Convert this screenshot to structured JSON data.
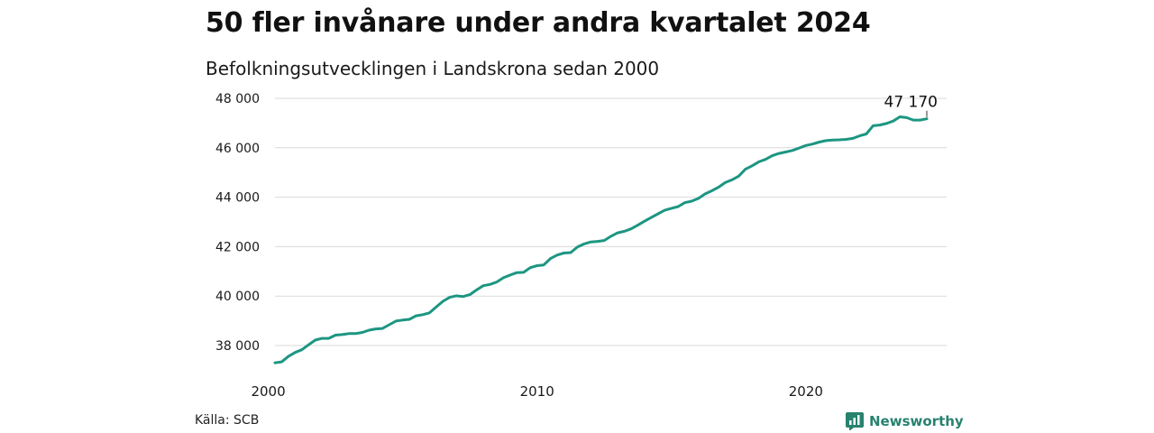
{
  "title": "50 fler invånare under andra kvartalet 2024",
  "subtitle": "Befolkningsutvecklingen i Landskrona sedan 2000",
  "source": "Källa: SCB",
  "brand": "Newsworthy",
  "colors": {
    "line": "#1c9682",
    "brand": "#27826e",
    "grid": "#d9d9d9"
  },
  "chart_data": {
    "type": "line",
    "title": "50 fler invånare under andra kvartalet 2024",
    "subtitle": "Befolkningsutvecklingen i Landskrona sedan 2000",
    "xlabel": "",
    "ylabel": "",
    "xlim": [
      2000,
      2025.3
    ],
    "ylim": [
      37000,
      48300
    ],
    "yticks": [
      38000,
      40000,
      42000,
      44000,
      46000,
      48000
    ],
    "ytick_labels": [
      "38 000",
      "40 000",
      "42 000",
      "44 000",
      "46 000",
      "48 000"
    ],
    "xticks": [
      2000,
      2010,
      2020
    ],
    "xtick_labels": [
      "2000",
      "2010",
      "2020"
    ],
    "grid": true,
    "end_label": "47 170",
    "series": [
      {
        "x": [
          2000.25,
          2000.5,
          2000.75,
          2001.0,
          2001.25,
          2001.5,
          2001.75,
          2002.0,
          2002.25,
          2002.5,
          2002.75,
          2003.0,
          2003.25,
          2003.5,
          2003.75,
          2004.0,
          2004.25,
          2004.5,
          2004.75,
          2005.0,
          2005.25,
          2005.5,
          2005.75,
          2006.0,
          2006.25,
          2006.5,
          2006.75,
          2007.0,
          2007.25,
          2007.5,
          2007.75,
          2008.0,
          2008.25,
          2008.5,
          2008.75,
          2009.0,
          2009.25,
          2009.5,
          2009.75,
          2010.0,
          2010.25,
          2010.5,
          2010.75,
          2011.0,
          2011.25,
          2011.5,
          2011.75,
          2012.0,
          2012.25,
          2012.5,
          2012.75,
          2013.0,
          2013.25,
          2013.5,
          2013.75,
          2014.0,
          2014.25,
          2014.5,
          2014.75,
          2015.0,
          2015.25,
          2015.5,
          2015.75,
          2016.0,
          2016.25,
          2016.5,
          2016.75,
          2017.0,
          2017.25,
          2017.5,
          2017.75,
          2018.0,
          2018.25,
          2018.5,
          2018.75,
          2019.0,
          2019.25,
          2019.5,
          2019.75,
          2020.0,
          2020.25,
          2020.5,
          2020.75,
          2021.0,
          2021.25,
          2021.5,
          2021.75,
          2022.0,
          2022.25,
          2022.5,
          2022.75,
          2023.0,
          2023.25,
          2023.5,
          2023.75,
          2024.0,
          2024.25,
          2024.5
        ],
        "values": [
          37300,
          37340,
          37560,
          37720,
          37830,
          38030,
          38220,
          38290,
          38290,
          38420,
          38440,
          38480,
          38480,
          38530,
          38620,
          38670,
          38690,
          38840,
          38990,
          39030,
          39060,
          39200,
          39250,
          39320,
          39560,
          39790,
          39950,
          40010,
          39980,
          40060,
          40250,
          40420,
          40470,
          40570,
          40740,
          40850,
          40950,
          40960,
          41150,
          41230,
          41260,
          41520,
          41660,
          41740,
          41760,
          41980,
          42110,
          42190,
          42210,
          42250,
          42420,
          42560,
          42620,
          42720,
          42870,
          43030,
          43180,
          43330,
          43470,
          43550,
          43620,
          43780,
          43840,
          43950,
          44130,
          44260,
          44400,
          44590,
          44700,
          44850,
          45130,
          45270,
          45430,
          45530,
          45680,
          45770,
          45830,
          45890,
          45990,
          46090,
          46150,
          46230,
          46290,
          46310,
          46320,
          46340,
          46380,
          46480,
          46560,
          46890,
          46920,
          46980,
          47080,
          47250,
          47220,
          47120,
          47120,
          47170
        ]
      }
    ]
  }
}
